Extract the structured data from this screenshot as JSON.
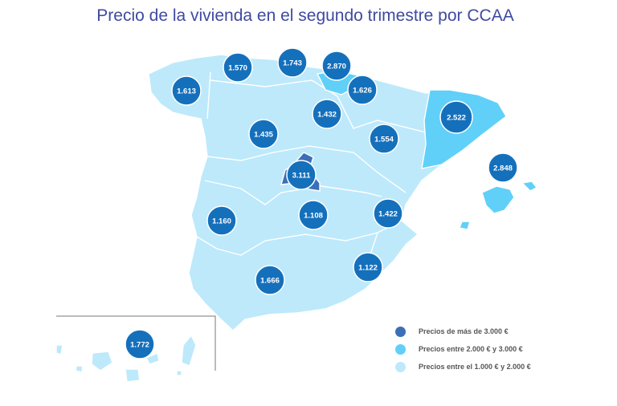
{
  "title": "Precio de la vivienda en el segundo trimestre por CCAA",
  "colors": {
    "high": "#3c6fb6",
    "mid": "#60d0f8",
    "low": "#bde9fb",
    "label": "#1570bc",
    "title": "#3f4aa0"
  },
  "legend": [
    {
      "label": "Precios de más de 3.000 €",
      "color": "#3c6fb6"
    },
    {
      "label": "Precios entre 2.000 € y 3.000 €",
      "color": "#60d0f8"
    },
    {
      "label": "Precios entre el 1.000 € y 2.000 €",
      "color": "#bde9fb"
    }
  ],
  "regions": [
    {
      "id": "galicia",
      "value": "1.613"
    },
    {
      "id": "asturias",
      "value": "1.570"
    },
    {
      "id": "cantabria",
      "value": "1.743"
    },
    {
      "id": "pais-vasco",
      "value": "2.870"
    },
    {
      "id": "navarra",
      "value": "1.626"
    },
    {
      "id": "la-rioja",
      "value": "1.432"
    },
    {
      "id": "castilla-y-leon",
      "value": "1.435"
    },
    {
      "id": "aragon",
      "value": "1.554"
    },
    {
      "id": "cataluna",
      "value": "2.522"
    },
    {
      "id": "baleares",
      "value": "2.848"
    },
    {
      "id": "madrid",
      "value": "3.111"
    },
    {
      "id": "castilla-la-mancha",
      "value": "1.108"
    },
    {
      "id": "extremadura",
      "value": "1.160"
    },
    {
      "id": "comunidad-valenciana",
      "value": "1.422"
    },
    {
      "id": "murcia",
      "value": "1.122"
    },
    {
      "id": "andalucia",
      "value": "1.666"
    },
    {
      "id": "canarias",
      "value": "1.772"
    }
  ]
}
